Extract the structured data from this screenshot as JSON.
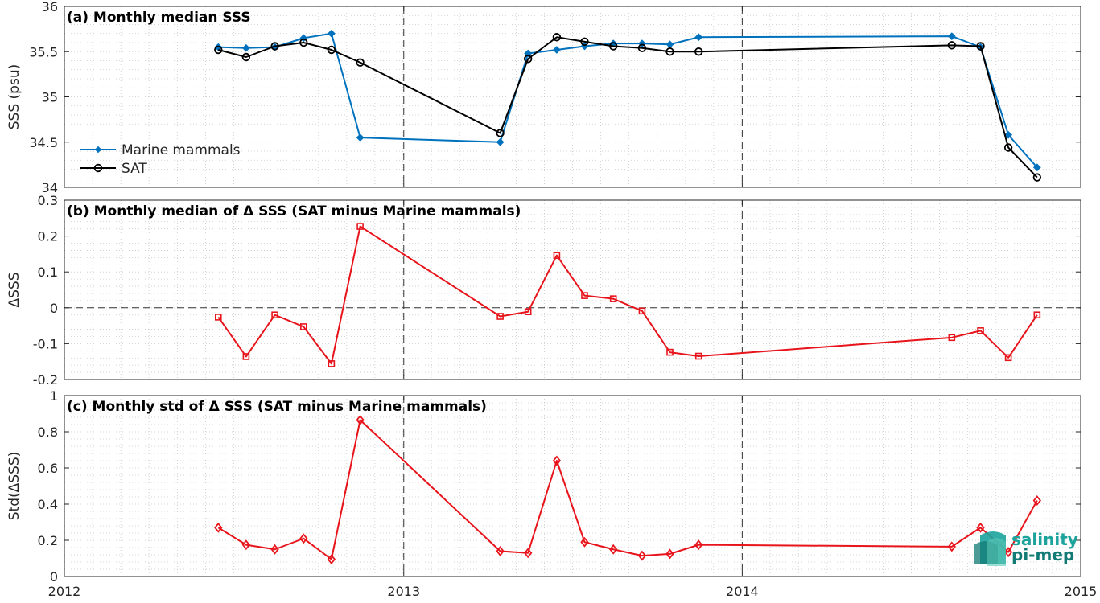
{
  "chart_data": [
    {
      "type": "line",
      "title": "(a) Monthly median SSS",
      "ylabel": "SSS (psu)",
      "xlim": [
        "2012-01-01",
        "2015-01-01"
      ],
      "ylim": [
        34,
        36
      ],
      "yticks": [
        34,
        34.5,
        35,
        35.5,
        36
      ],
      "ytick_labels": [
        "34",
        "34.5",
        "35",
        "35.5",
        "36"
      ],
      "legend_position": "left",
      "grid": "dotted",
      "series": [
        {
          "name": "Marine mammals",
          "color": "#0072BD",
          "marker": "diamond",
          "x": [
            "2012-06-15",
            "2012-07-15",
            "2012-08-15",
            "2012-09-15",
            "2012-10-15",
            "2012-11-15",
            "2013-04-15",
            "2013-05-15",
            "2013-06-15",
            "2013-07-15",
            "2013-08-15",
            "2013-09-15",
            "2013-10-15",
            "2013-11-15",
            "2014-08-15",
            "2014-09-15",
            "2014-10-15",
            "2014-11-15"
          ],
          "y": [
            35.55,
            35.54,
            35.55,
            35.65,
            35.7,
            34.55,
            34.5,
            35.48,
            35.52,
            35.56,
            35.59,
            35.59,
            35.58,
            35.66,
            35.67,
            35.55,
            34.58,
            34.22
          ]
        },
        {
          "name": "SAT",
          "color": "#000000",
          "marker": "circle",
          "x": [
            "2012-06-15",
            "2012-07-15",
            "2012-08-15",
            "2012-09-15",
            "2012-10-15",
            "2012-11-15",
            "2013-04-15",
            "2013-05-15",
            "2013-06-15",
            "2013-07-15",
            "2013-08-15",
            "2013-09-15",
            "2013-10-15",
            "2013-11-15",
            "2014-08-15",
            "2014-09-15",
            "2014-10-15",
            "2014-11-15"
          ],
          "y": [
            35.52,
            35.44,
            35.56,
            35.6,
            35.52,
            35.38,
            34.6,
            35.42,
            35.66,
            35.61,
            35.56,
            35.54,
            35.5,
            35.5,
            35.57,
            35.56,
            34.44,
            34.11
          ]
        }
      ]
    },
    {
      "type": "line",
      "title": "(b) Monthly median of Δ SSS (SAT minus Marine mammals)",
      "ylabel": "ΔSSS",
      "xlim": [
        "2012-01-01",
        "2015-01-01"
      ],
      "ylim": [
        -0.2,
        0.3
      ],
      "yticks": [
        -0.2,
        -0.1,
        0,
        0.1,
        0.2,
        0.3
      ],
      "ytick_labels": [
        "-0.2",
        "-0.1",
        "0",
        "0.1",
        "0.2",
        "0.3"
      ],
      "zero_line": true,
      "grid": "dotted",
      "series": [
        {
          "color": "#E8141B",
          "marker": "square",
          "x": [
            "2012-06-15",
            "2012-07-15",
            "2012-08-15",
            "2012-09-15",
            "2012-10-15",
            "2012-11-15",
            "2013-04-15",
            "2013-05-15",
            "2013-06-15",
            "2013-07-15",
            "2013-08-15",
            "2013-09-15",
            "2013-10-15",
            "2013-11-15",
            "2014-08-15",
            "2014-09-15",
            "2014-10-15",
            "2014-11-15"
          ],
          "y": [
            -0.026,
            -0.136,
            -0.02,
            -0.053,
            -0.156,
            0.227,
            -0.024,
            -0.011,
            0.146,
            0.034,
            0.025,
            -0.009,
            -0.124,
            -0.135,
            -0.083,
            -0.064,
            -0.139,
            -0.02
          ]
        }
      ]
    },
    {
      "type": "line",
      "title": "(c) Monthly std of Δ SSS (SAT minus Marine mammals)",
      "ylabel": "Std(ΔSSS)",
      "xlim": [
        "2012-01-01",
        "2015-01-01"
      ],
      "ylim": [
        0,
        1
      ],
      "yticks": [
        0,
        0.2,
        0.4,
        0.6,
        0.8,
        1
      ],
      "ytick_labels": [
        "0",
        "0.2",
        "0.4",
        "0.6",
        "0.8",
        "1"
      ],
      "xticks": [
        "2012-01-01",
        "2013-01-01",
        "2014-01-01",
        "2015-01-01"
      ],
      "xtick_labels": [
        "2012",
        "2013",
        "2014",
        "2015"
      ],
      "grid": "dotted",
      "series": [
        {
          "color": "#E8141B",
          "marker": "diamond",
          "x": [
            "2012-06-15",
            "2012-07-15",
            "2012-08-15",
            "2012-09-15",
            "2012-10-15",
            "2012-11-15",
            "2013-04-15",
            "2013-05-15",
            "2013-06-15",
            "2013-07-15",
            "2013-08-15",
            "2013-09-15",
            "2013-10-15",
            "2013-11-15",
            "2014-08-15",
            "2014-09-15",
            "2014-10-15",
            "2014-11-15"
          ],
          "y": [
            0.27,
            0.175,
            0.15,
            0.21,
            0.095,
            0.865,
            0.14,
            0.13,
            0.64,
            0.19,
            0.15,
            0.115,
            0.125,
            0.175,
            0.165,
            0.27,
            0.135,
            0.42
          ]
        }
      ]
    }
  ],
  "year_boundaries": [
    "2013-01-01",
    "2014-01-01"
  ],
  "logo": {
    "line1": "salinity",
    "line2": "pi-mep",
    "color_primary": "#1BA39C",
    "color_secondary": "#117A74"
  }
}
